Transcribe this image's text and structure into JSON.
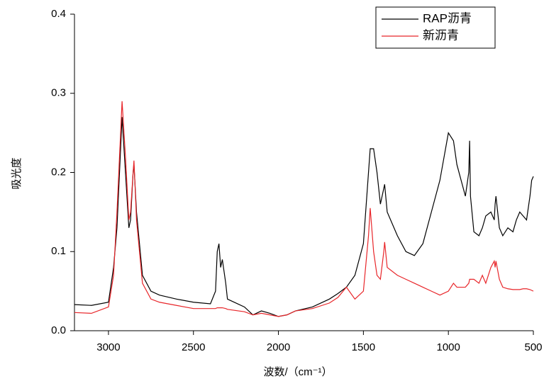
{
  "chart_data": {
    "type": "line",
    "x_label": "波数/（cm⁻¹）",
    "y_label": "吸光度",
    "x": [
      3200,
      3100,
      3000,
      2970,
      2950,
      2935,
      2920,
      2900,
      2880,
      2870,
      2855,
      2850,
      2835,
      2800,
      2750,
      2700,
      2600,
      2500,
      2400,
      2370,
      2360,
      2350,
      2340,
      2330,
      2310,
      2300,
      2200,
      2150,
      2100,
      2050,
      2000,
      1950,
      1900,
      1800,
      1700,
      1650,
      1600,
      1550,
      1500,
      1470,
      1460,
      1440,
      1420,
      1400,
      1380,
      1375,
      1360,
      1300,
      1250,
      1200,
      1150,
      1100,
      1050,
      1000,
      970,
      950,
      900,
      880,
      875,
      870,
      850,
      820,
      800,
      780,
      750,
      730,
      725,
      720,
      700,
      680,
      650,
      620,
      600,
      580,
      560,
      540,
      520,
      510,
      500
    ],
    "series": [
      {
        "name": "RAP沥青",
        "color": "#000000",
        "values": [
          0.033,
          0.032,
          0.036,
          0.08,
          0.13,
          0.2,
          0.27,
          0.2,
          0.13,
          0.14,
          0.2,
          0.21,
          0.15,
          0.07,
          0.05,
          0.045,
          0.04,
          0.036,
          0.034,
          0.05,
          0.1,
          0.11,
          0.08,
          0.09,
          0.06,
          0.04,
          0.03,
          0.02,
          0.025,
          0.022,
          0.018,
          0.02,
          0.025,
          0.03,
          0.04,
          0.047,
          0.055,
          0.07,
          0.11,
          0.2,
          0.23,
          0.23,
          0.2,
          0.16,
          0.18,
          0.185,
          0.15,
          0.12,
          0.1,
          0.095,
          0.11,
          0.15,
          0.19,
          0.25,
          0.24,
          0.21,
          0.17,
          0.2,
          0.24,
          0.17,
          0.125,
          0.12,
          0.13,
          0.145,
          0.15,
          0.14,
          0.16,
          0.17,
          0.13,
          0.12,
          0.13,
          0.125,
          0.14,
          0.15,
          0.145,
          0.14,
          0.17,
          0.19,
          0.195
        ]
      },
      {
        "name": "新沥青",
        "color": "#e8262a",
        "values": [
          0.023,
          0.022,
          0.03,
          0.07,
          0.15,
          0.22,
          0.29,
          0.22,
          0.14,
          0.15,
          0.2,
          0.215,
          0.14,
          0.06,
          0.04,
          0.036,
          0.032,
          0.028,
          0.028,
          0.028,
          0.029,
          0.029,
          0.029,
          0.029,
          0.028,
          0.027,
          0.024,
          0.02,
          0.022,
          0.02,
          0.018,
          0.02,
          0.025,
          0.028,
          0.035,
          0.042,
          0.055,
          0.04,
          0.05,
          0.12,
          0.155,
          0.1,
          0.07,
          0.065,
          0.1,
          0.112,
          0.08,
          0.07,
          0.065,
          0.06,
          0.055,
          0.05,
          0.045,
          0.05,
          0.06,
          0.055,
          0.055,
          0.06,
          0.065,
          0.065,
          0.065,
          0.06,
          0.07,
          0.06,
          0.08,
          0.088,
          0.08,
          0.088,
          0.065,
          0.055,
          0.053,
          0.052,
          0.052,
          0.052,
          0.053,
          0.053,
          0.052,
          0.051,
          0.05
        ]
      }
    ],
    "xlim": [
      3200,
      500
    ],
    "xticks": [
      3000,
      2500,
      2000,
      1500,
      1000,
      500
    ],
    "ylim": [
      0,
      0.4
    ],
    "yticks": [
      {
        "value": 0,
        "label": "0.0"
      },
      0.1,
      0.2,
      0.3,
      0.4
    ],
    "legend": "upper right"
  }
}
